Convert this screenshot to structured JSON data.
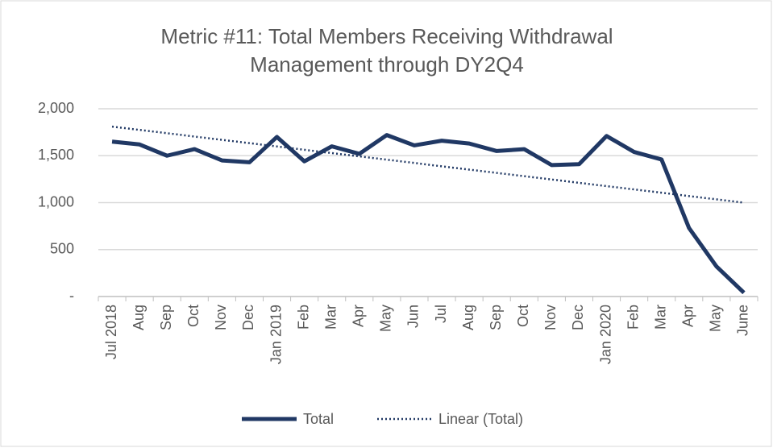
{
  "chart_data": {
    "type": "line",
    "title": [
      "Metric #11: Total Members Receiving Withdrawal",
      "Management through DY2Q4"
    ],
    "categories": [
      "Jul 2018",
      "Aug",
      "Sep",
      "Oct",
      "Nov",
      "Dec",
      "Jan 2019",
      "Feb",
      "Mar",
      "Apr",
      "May",
      "Jun",
      "Jul",
      "Aug",
      "Sep",
      "Oct",
      "Nov",
      "Dec",
      "Jan 2020",
      "Feb",
      "Mar",
      "Apr",
      "May",
      "June"
    ],
    "series": [
      {
        "name": "Total",
        "color": "#203864",
        "style": "solid",
        "values": [
          1650,
          1620,
          1500,
          1570,
          1450,
          1430,
          1700,
          1440,
          1600,
          1520,
          1720,
          1610,
          1660,
          1630,
          1550,
          1570,
          1400,
          1410,
          1710,
          1540,
          1460,
          730,
          320,
          40
        ]
      },
      {
        "name": "Linear (Total)",
        "color": "#203864",
        "style": "dotted",
        "values": [
          1810,
          1775,
          1740,
          1704,
          1669,
          1634,
          1599,
          1563,
          1528,
          1493,
          1458,
          1423,
          1387,
          1352,
          1317,
          1282,
          1247,
          1211,
          1176,
          1141,
          1106,
          1070,
          1035,
          1000
        ]
      }
    ],
    "ylim": [
      0,
      2000
    ],
    "yticks": [
      {
        "value": 0,
        "label": "-"
      },
      {
        "value": 500,
        "label": "500"
      },
      {
        "value": 1000,
        "label": "1,000"
      },
      {
        "value": 1500,
        "label": "1,500"
      },
      {
        "value": 2000,
        "label": "2,000"
      }
    ],
    "grid": true,
    "legend": "bottom"
  }
}
